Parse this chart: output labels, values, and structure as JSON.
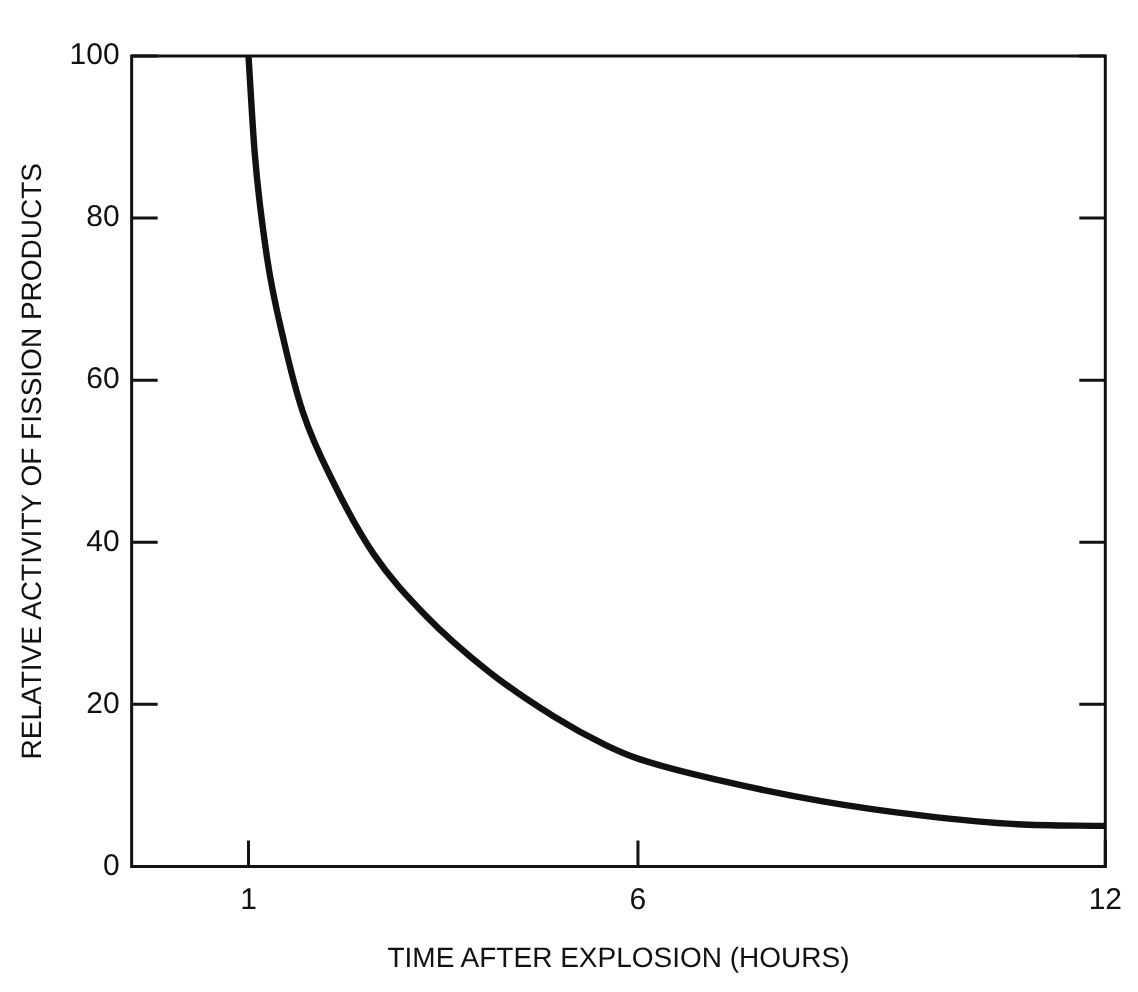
{
  "chart_data": {
    "type": "line",
    "xlabel": "TIME AFTER EXPLOSION (HOURS)",
    "ylabel": "RELATIVE ACTIVITY OF FISSION PRODUCTS",
    "x": [
      1,
      1.08,
      1.24,
      1.45,
      1.7,
      2.11,
      2.61,
      3.27,
      4.09,
      4.92,
      5.58,
      6,
      7.15,
      8.39,
      9.63,
      10.87,
      12
    ],
    "series": [
      {
        "color": "#111111",
        "values": [
          100,
          88,
          75,
          65,
          56,
          47,
          38.5,
          31,
          24,
          18.5,
          15,
          13.3,
          10.4,
          8,
          6.3,
          5.2,
          5
        ]
      }
    ],
    "xlim": [
      -0.5,
      12
    ],
    "xticks": [
      1,
      6,
      12
    ],
    "ylim": [
      0,
      100
    ],
    "yticks": [
      0,
      20,
      40,
      60,
      80,
      100
    ],
    "grid": false,
    "legend": false,
    "marker": "none",
    "line_style": "solid"
  }
}
